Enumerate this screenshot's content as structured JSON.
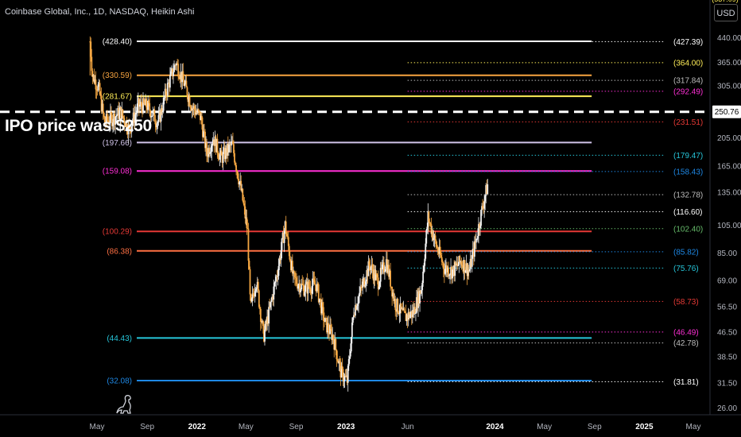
{
  "header": {
    "symbol_title": "Coinbase Global, Inc., 1D, NASDAQ, Heikin Ashi",
    "currency_button": "USD"
  },
  "annotation": {
    "ipo_text": "IPO price was $250"
  },
  "chart_data": {
    "type": "candlestick",
    "title": "Coinbase Global, Inc., 1D, NASDAQ, Heikin Ashi",
    "y_scale": "log",
    "ylim": [
      24,
      525
    ],
    "xlim": [
      "2021-04-01",
      "2025-05-31"
    ],
    "x_ticks": [
      {
        "date": "2021-05-01",
        "label": "May",
        "bold": false
      },
      {
        "date": "2021-09-01",
        "label": "Sep",
        "bold": false
      },
      {
        "date": "2022-01-01",
        "label": "2022",
        "bold": true
      },
      {
        "date": "2022-05-01",
        "label": "May",
        "bold": false
      },
      {
        "date": "2022-09-01",
        "label": "Sep",
        "bold": false
      },
      {
        "date": "2023-01-01",
        "label": "2023",
        "bold": true
      },
      {
        "date": "2023-06-01",
        "label": "Jun",
        "bold": false
      },
      {
        "date": "2024-01-01",
        "label": "2024",
        "bold": true
      },
      {
        "date": "2024-05-01",
        "label": "May",
        "bold": false
      },
      {
        "date": "2024-09-01",
        "label": "Sep",
        "bold": false
      },
      {
        "date": "2025-01-01",
        "label": "2025",
        "bold": true
      },
      {
        "date": "2025-05-01",
        "label": "May",
        "bold": false
      }
    ],
    "y_ticks": [
      440.0,
      365.0,
      305.0,
      205.0,
      165.0,
      135.0,
      105.0,
      85.0,
      69.0,
      56.5,
      46.5,
      38.5,
      31.5,
      26.0
    ],
    "current_price": {
      "value": 250.76,
      "label": "250.76"
    },
    "ipo_price_line": 250,
    "solid_levels": [
      {
        "value": 428.4,
        "label": "(428.40)",
        "color": "#ffffff"
      },
      {
        "value": 330.59,
        "label": "(330.59)",
        "color": "#f7a440"
      },
      {
        "value": 281.67,
        "label": "(281.67)",
        "color": "#ffee58"
      },
      {
        "value": 197.66,
        "label": "(197.66)",
        "color": "#d1c4e9"
      },
      {
        "value": 159.08,
        "label": "(159.08)",
        "color": "#ff2fd6"
      },
      {
        "value": 100.29,
        "label": "(100.29)",
        "color": "#e53935"
      },
      {
        "value": 86.38,
        "label": "(86.38)",
        "color": "#ff7043"
      },
      {
        "value": 44.43,
        "label": "(44.43)",
        "color": "#26c6da"
      },
      {
        "value": 32.08,
        "label": "(32.08)",
        "color": "#1e88e5"
      }
    ],
    "dotted_levels": [
      {
        "value": 427.39,
        "label": "(427.39)",
        "color": "#ffffff",
        "start": "2023-06-01"
      },
      {
        "value": 364.0,
        "label": "(364.00)",
        "color": "#ffee58",
        "start": "2023-06-01"
      },
      {
        "value": 317.84,
        "label": "(317.84)",
        "color": "#bdbdbd",
        "start": "2023-06-01"
      },
      {
        "value": 292.49,
        "label": "(292.49)",
        "color": "#ff2fd6",
        "start": "2023-06-01"
      },
      {
        "value": 231.51,
        "label": "(231.51)",
        "color": "#e53935",
        "start": "2023-06-01"
      },
      {
        "value": 179.47,
        "label": "(179.47)",
        "color": "#26c6da",
        "start": "2023-06-01"
      },
      {
        "value": 158.43,
        "label": "(158.43)",
        "color": "#1e88e5",
        "start": "2023-06-01"
      },
      {
        "value": 132.78,
        "label": "(132.78)",
        "color": "#bdbdbd",
        "start": "2023-06-01"
      },
      {
        "value": 116.6,
        "label": "(116.60)",
        "color": "#ffffff",
        "start": "2023-06-01"
      },
      {
        "value": 102.4,
        "label": "(102.40)",
        "color": "#66bb6a",
        "start": "2023-06-01"
      },
      {
        "value": 85.82,
        "label": "(85.82)",
        "color": "#1e88e5",
        "start": "2023-06-01"
      },
      {
        "value": 75.76,
        "label": "(75.76)",
        "color": "#26c6da",
        "start": "2023-06-01"
      },
      {
        "value": 58.73,
        "label": "(58.73)",
        "color": "#e53935",
        "start": "2023-06-01"
      },
      {
        "value": 46.49,
        "label": "(46.49)",
        "color": "#ff2fd6",
        "start": "2023-06-01"
      },
      {
        "value": 42.78,
        "label": "(42.78)",
        "color": "#bdbdbd",
        "start": "2023-06-01"
      },
      {
        "value": 31.81,
        "label": "(31.81)",
        "color": "#ffffff",
        "start": "2023-06-01"
      }
    ],
    "price_path": [
      [
        "2021-04-14",
        428
      ],
      [
        "2021-04-20",
        330
      ],
      [
        "2021-05-05",
        300
      ],
      [
        "2021-05-19",
        232
      ],
      [
        "2021-06-08",
        238
      ],
      [
        "2021-06-28",
        250
      ],
      [
        "2021-07-19",
        218
      ],
      [
        "2021-08-10",
        262
      ],
      [
        "2021-09-01",
        262
      ],
      [
        "2021-09-28",
        230
      ],
      [
        "2021-10-20",
        300
      ],
      [
        "2021-11-10",
        365
      ],
      [
        "2021-11-30",
        312
      ],
      [
        "2021-12-20",
        260
      ],
      [
        "2022-01-10",
        240
      ],
      [
        "2022-01-25",
        182
      ],
      [
        "2022-02-10",
        205
      ],
      [
        "2022-03-01",
        175
      ],
      [
        "2022-03-28",
        195
      ],
      [
        "2022-04-20",
        135
      ],
      [
        "2022-05-05",
        100
      ],
      [
        "2022-05-12",
        55
      ],
      [
        "2022-05-26",
        70
      ],
      [
        "2022-06-13",
        45
      ],
      [
        "2022-06-28",
        55
      ],
      [
        "2022-07-18",
        75
      ],
      [
        "2022-08-05",
        105
      ],
      [
        "2022-08-25",
        70
      ],
      [
        "2022-09-20",
        65
      ],
      [
        "2022-10-20",
        67
      ],
      [
        "2022-11-10",
        50
      ],
      [
        "2022-11-30",
        45
      ],
      [
        "2022-12-20",
        34
      ],
      [
        "2023-01-04",
        32
      ],
      [
        "2023-01-20",
        55
      ],
      [
        "2023-02-03",
        62
      ],
      [
        "2023-02-28",
        78
      ],
      [
        "2023-03-20",
        68
      ],
      [
        "2023-04-10",
        80
      ],
      [
        "2023-05-01",
        58
      ],
      [
        "2023-05-25",
        52
      ],
      [
        "2023-06-15",
        54
      ],
      [
        "2023-07-05",
        65
      ],
      [
        "2023-07-21",
        112
      ],
      [
        "2023-08-10",
        90
      ],
      [
        "2023-08-30",
        76
      ],
      [
        "2023-09-20",
        74
      ],
      [
        "2023-10-10",
        80
      ],
      [
        "2023-10-30",
        74
      ],
      [
        "2023-11-15",
        93
      ],
      [
        "2023-12-01",
        120
      ],
      [
        "2023-12-15",
        145
      ]
    ]
  },
  "logo": {
    "icon": "dinosaur-icon"
  }
}
